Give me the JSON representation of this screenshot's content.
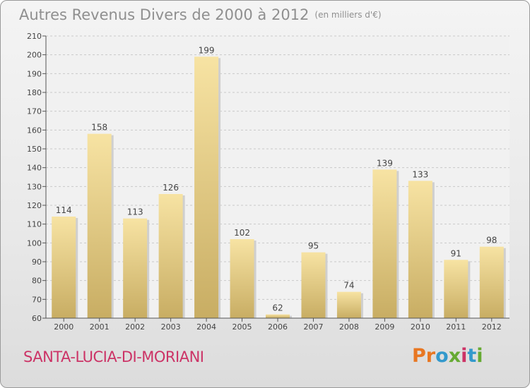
{
  "header": {
    "title": "Autres Revenus Divers de 2000 à 2012",
    "unit": "(en milliers d'€)"
  },
  "footer": {
    "commune": "SANTA-LUCIA-DI-MORIANI",
    "logo": {
      "letters": [
        "P",
        "r",
        "o",
        "x",
        "i",
        "t",
        "i"
      ],
      "colors": [
        "#e87722",
        "#e87722",
        "#3399cc",
        "#66aa33",
        "#cc3366",
        "#3399cc",
        "#66aa33"
      ]
    }
  },
  "colors": {
    "bar_light": "#f7e3a3",
    "bar_dark": "#c8ad63",
    "grid": "#c9c9c9",
    "axis": "#555555"
  },
  "chart_data": {
    "type": "bar",
    "categories": [
      "2000",
      "2001",
      "2002",
      "2003",
      "2004",
      "2005",
      "2006",
      "2007",
      "2008",
      "2009",
      "2010",
      "2011",
      "2012"
    ],
    "values": [
      114,
      158,
      113,
      126,
      199,
      102,
      62,
      95,
      74,
      139,
      133,
      91,
      98
    ],
    "ylim": [
      60,
      210
    ],
    "yticks": [
      60,
      70,
      80,
      90,
      100,
      110,
      120,
      130,
      140,
      150,
      160,
      170,
      180,
      190,
      200,
      210
    ],
    "grid": true,
    "title": "Autres Revenus Divers de 2000 à 2012",
    "xlabel": "",
    "ylabel": ""
  }
}
